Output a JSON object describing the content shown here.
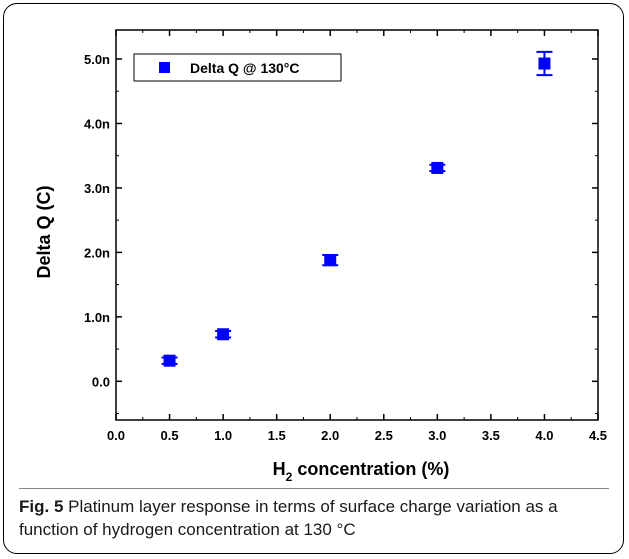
{
  "chart_data": {
    "type": "scatter",
    "series": [
      {
        "name": "Delta Q @ 130°C",
        "x": [
          0.5,
          1.0,
          2.0,
          3.0,
          4.0
        ],
        "y": [
          0.32,
          0.73,
          1.88,
          3.31,
          4.93
        ],
        "yerr": [
          0.05,
          0.05,
          0.08,
          0.05,
          0.18
        ],
        "color": "#0000ff",
        "marker": "square"
      }
    ],
    "xlabel": "H2 concentration (%)",
    "xlabel_main": "H",
    "xlabel_sub": "2",
    "xlabel_rest": " concentration (%)",
    "ylabel": "Delta Q (C)",
    "xlim": [
      0.0,
      4.5
    ],
    "ylim": [
      -0.6,
      5.45
    ],
    "xticks": [
      0.0,
      0.5,
      1.0,
      1.5,
      2.0,
      2.5,
      3.0,
      3.5,
      4.0,
      4.5
    ],
    "xtick_labels": [
      "0.0",
      "0.5",
      "1.0",
      "1.5",
      "2.0",
      "2.5",
      "3.0",
      "3.5",
      "4.0",
      "4.5"
    ],
    "yticks": [
      0.0,
      1.0,
      2.0,
      3.0,
      4.0,
      5.0
    ],
    "ytick_labels": [
      "0.0",
      "1.0n",
      "2.0n",
      "3.0n",
      "4.0n",
      "5.0n"
    ],
    "legend_position": "top-left",
    "grid": false
  },
  "caption": {
    "label": "Fig. 5",
    "text": "Platinum layer response in terms of surface charge variation as a function of hydrogen concentration at 130 °C"
  }
}
